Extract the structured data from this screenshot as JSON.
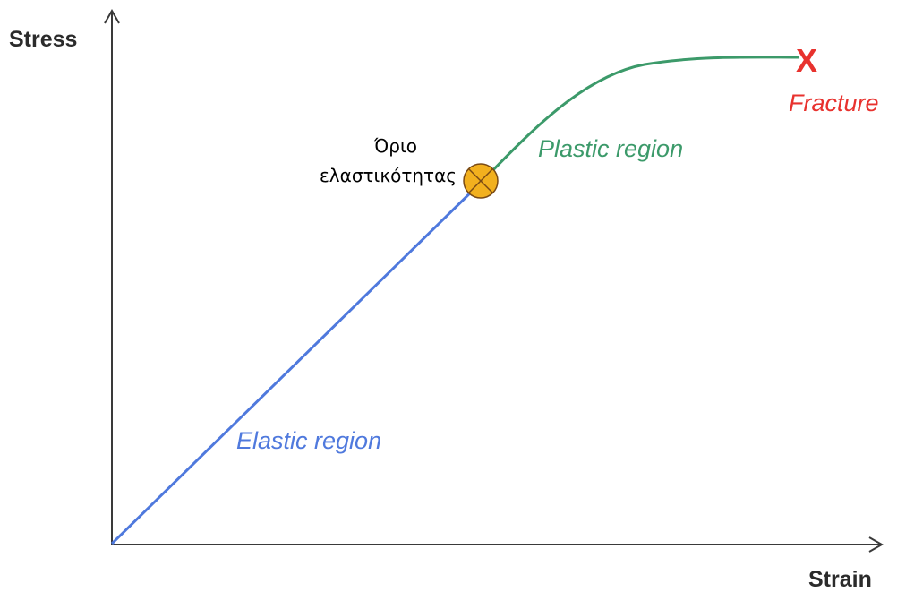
{
  "axes": {
    "y_label": "Stress",
    "x_label": "Strain"
  },
  "regions": {
    "elastic_label": "Elastic region",
    "plastic_label": "Plastic region",
    "fracture_label": "Fracture",
    "fracture_marker": "X"
  },
  "elastic_limit": {
    "line1": "Όριο",
    "line2": "ελαστικότητας"
  },
  "colors": {
    "axis": "#3a3a3a",
    "elastic": "#4f79dd",
    "plastic": "#3c9a6a",
    "fracture": "#e8322e",
    "limit_fill": "#f2b01e",
    "limit_stroke": "#7a4a14"
  }
}
